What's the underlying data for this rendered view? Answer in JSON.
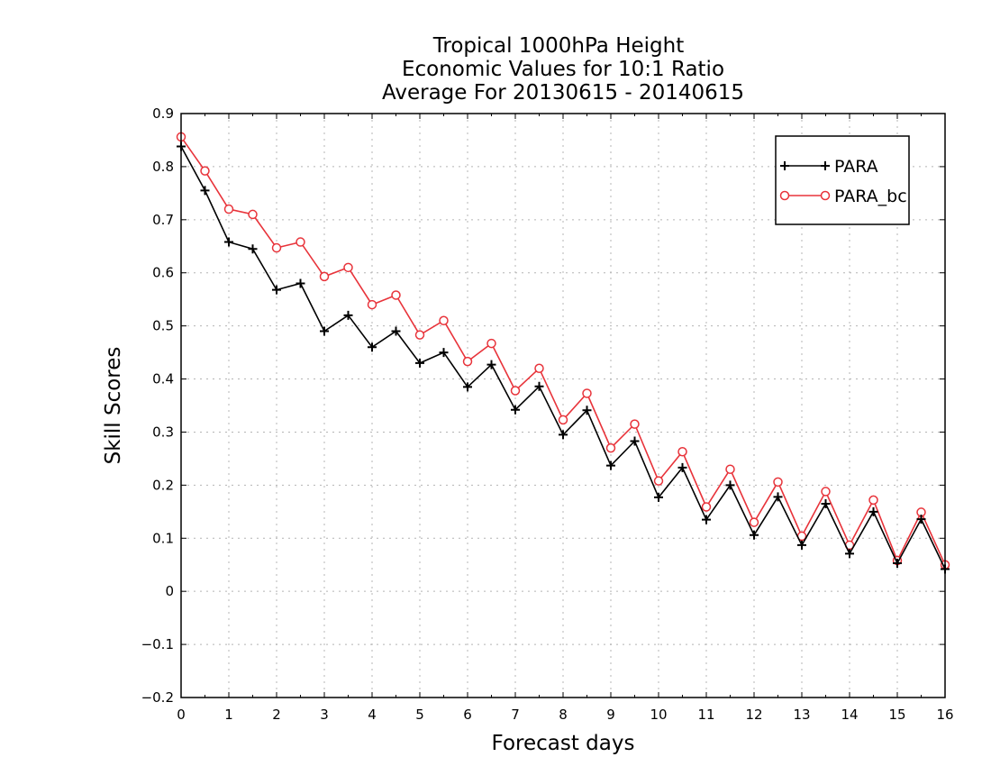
{
  "chart_data": {
    "type": "line",
    "title": [
      "Tropical 1000hPa Height",
      "Economic Values for 10:1 Ratio",
      "Average For 20130615 - 20140615"
    ],
    "xlabel": "Forecast days",
    "ylabel": "Skill Scores",
    "xlim": [
      0,
      16
    ],
    "ylim": [
      -0.2,
      0.9
    ],
    "xticks": [
      0,
      1,
      2,
      3,
      4,
      5,
      6,
      7,
      8,
      9,
      10,
      11,
      12,
      13,
      14,
      15,
      16
    ],
    "xtick_labels": [
      "0",
      "1",
      "2",
      "3",
      "4",
      "5",
      "6",
      "7",
      "8",
      "9",
      "10",
      "11",
      "12",
      "13",
      "14",
      "15",
      "16"
    ],
    "yticks": [
      -0.2,
      -0.1,
      0,
      0.1,
      0.2,
      0.3,
      0.4,
      0.5,
      0.6,
      0.7,
      0.8,
      0.9
    ],
    "ytick_labels": [
      "−0.2",
      "−0.1",
      "0",
      "0.1",
      "0.2",
      "0.3",
      "0.4",
      "0.5",
      "0.6",
      "0.7",
      "0.8",
      "0.9"
    ],
    "grid": true,
    "legend_position": "top-right",
    "x": [
      0,
      0.5,
      1,
      1.5,
      2,
      2.5,
      3,
      3.5,
      4,
      4.5,
      5,
      5.5,
      6,
      6.5,
      7,
      7.5,
      8,
      8.5,
      9,
      9.5,
      10,
      10.5,
      11,
      11.5,
      12,
      12.5,
      13,
      13.5,
      14,
      14.5,
      15,
      15.5,
      16
    ],
    "series": [
      {
        "name": "PARA",
        "color": "#000000",
        "marker": "plus",
        "values": [
          0.838,
          0.755,
          0.658,
          0.645,
          0.568,
          0.58,
          0.49,
          0.52,
          0.46,
          0.49,
          0.43,
          0.45,
          0.385,
          0.427,
          0.342,
          0.386,
          0.295,
          0.341,
          0.237,
          0.283,
          0.177,
          0.233,
          0.135,
          0.2,
          0.106,
          0.178,
          0.087,
          0.165,
          0.071,
          0.15,
          0.053,
          0.136,
          0.042
        ]
      },
      {
        "name": "PARA_bc",
        "color": "#e8333a",
        "marker": "circle",
        "values": [
          0.856,
          0.792,
          0.72,
          0.71,
          0.647,
          0.658,
          0.593,
          0.61,
          0.54,
          0.558,
          0.483,
          0.51,
          0.433,
          0.467,
          0.378,
          0.42,
          0.323,
          0.373,
          0.27,
          0.315,
          0.208,
          0.263,
          0.159,
          0.23,
          0.13,
          0.206,
          0.104,
          0.188,
          0.087,
          0.172,
          0.058,
          0.149,
          0.05
        ]
      }
    ]
  }
}
